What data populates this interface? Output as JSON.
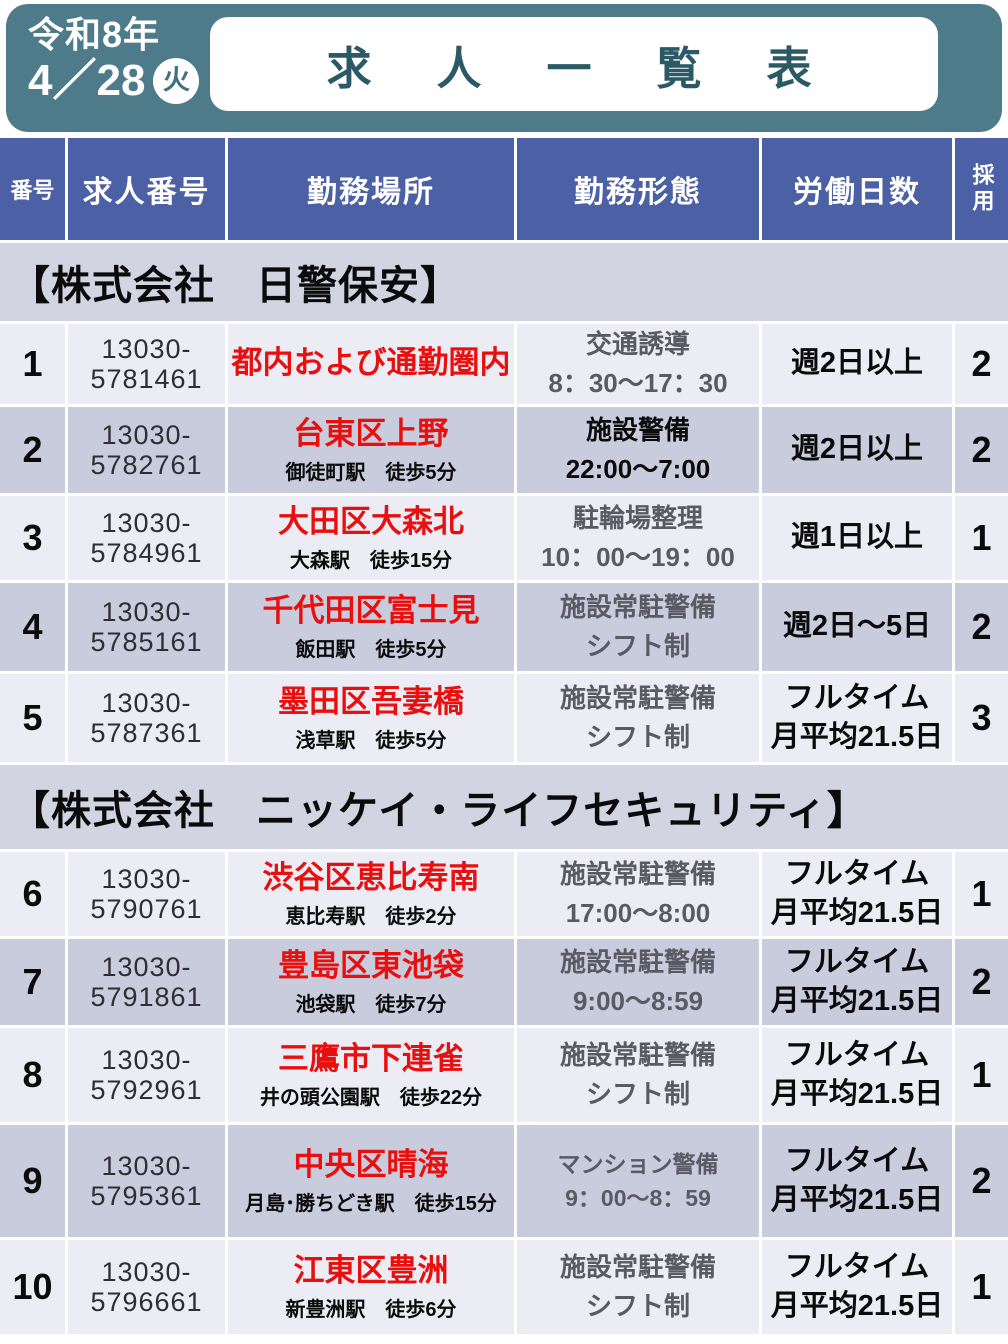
{
  "banner": {
    "era_year": "令和8年",
    "date": "4／28",
    "weekday": "火",
    "title": "求　人　一　覧　表"
  },
  "colors": {
    "banner_teal": "#4d7b8a",
    "title_text_teal": "#2b5a66",
    "header_blue": "#4b60a5",
    "section_bg": "#d2d4e2",
    "row_light": "#ebecf4",
    "row_dark": "#c9ccdd",
    "location_red": "#e80f0f",
    "worktype_gray": "#5a5a64"
  },
  "header": {
    "no": "番号",
    "job_number": "求人番号",
    "location": "勤務場所",
    "work_type": "勤務形態",
    "work_days": "労働日数",
    "hire": "採用"
  },
  "sections": [
    {
      "title": "【株式会社　日警保安】"
    },
    {
      "title": "【株式会社　ニッケイ・ライフセキュリティ】"
    }
  ],
  "rows": [
    {
      "no": "1",
      "job_no_line1": "13030-",
      "job_no_line2": "5781461",
      "location": "都内および通勤圏内",
      "station": "",
      "work_type_line1": "交通誘導",
      "work_type_line2": "8：30～17：30",
      "days_line1": "週2日以上",
      "days_line2": "",
      "hire": "2"
    },
    {
      "no": "2",
      "job_no_line1": "13030-",
      "job_no_line2": "5782761",
      "location": "台東区上野",
      "station": "御徒町駅　徒歩5分",
      "work_type_line1": "施設警備",
      "work_type_line2": "22:00～7:00",
      "days_line1": "週2日以上",
      "days_line2": "",
      "hire": "2"
    },
    {
      "no": "3",
      "job_no_line1": "13030-",
      "job_no_line2": "5784961",
      "location": "大田区大森北",
      "station": "大森駅　徒歩15分",
      "work_type_line1": "駐輪場整理",
      "work_type_line2": "10：00～19：00",
      "days_line1": "週1日以上",
      "days_line2": "",
      "hire": "1"
    },
    {
      "no": "4",
      "job_no_line1": "13030-",
      "job_no_line2": "5785161",
      "location": "千代田区富士見",
      "station": "飯田駅　徒歩5分",
      "work_type_line1": "施設常駐警備",
      "work_type_line2": "シフト制",
      "days_line1": "週2日～5日",
      "days_line2": "",
      "hire": "2"
    },
    {
      "no": "5",
      "job_no_line1": "13030-",
      "job_no_line2": "5787361",
      "location": "墨田区吾妻橋",
      "station": "浅草駅　徒歩5分",
      "work_type_line1": "施設常駐警備",
      "work_type_line2": "シフト制",
      "days_line1": "フルタイム",
      "days_line2": "月平均21.5日",
      "hire": "3"
    },
    {
      "no": "6",
      "job_no_line1": "13030-",
      "job_no_line2": "5790761",
      "location": "渋谷区恵比寿南",
      "station": "恵比寿駅　徒歩2分",
      "work_type_line1": "施設常駐警備",
      "work_type_line2": "17:00～8:00",
      "days_line1": "フルタイム",
      "days_line2": "月平均21.5日",
      "hire": "1"
    },
    {
      "no": "7",
      "job_no_line1": "13030-",
      "job_no_line2": "5791861",
      "location": "豊島区東池袋",
      "station": "池袋駅　徒歩7分",
      "work_type_line1": "施設常駐警備",
      "work_type_line2": "9:00～8:59",
      "days_line1": "フルタイム",
      "days_line2": "月平均21.5日",
      "hire": "2"
    },
    {
      "no": "8",
      "job_no_line1": "13030-",
      "job_no_line2": "5792961",
      "location": "三鷹市下連雀",
      "station": "井の頭公園駅　徒歩22分",
      "work_type_line1": "施設常駐警備",
      "work_type_line2": "シフト制",
      "days_line1": "フルタイム",
      "days_line2": "月平均21.5日",
      "hire": "1"
    },
    {
      "no": "9",
      "job_no_line1": "13030-",
      "job_no_line2": "5795361",
      "location": "中央区晴海",
      "station": "月島･勝ちどき駅　徒歩15分",
      "work_type_line1": "マンション警備",
      "work_type_line2": "9：00～8：59",
      "days_line1": "フルタイム",
      "days_line2": "月平均21.5日",
      "hire": "2"
    },
    {
      "no": "10",
      "job_no_line1": "13030-",
      "job_no_line2": "5796661",
      "location": "江東区豊洲",
      "station": "新豊洲駅　徒歩6分",
      "work_type_line1": "施設常駐警備",
      "work_type_line2": "シフト制",
      "days_line1": "フルタイム",
      "days_line2": "月平均21.5日",
      "hire": "1"
    }
  ]
}
